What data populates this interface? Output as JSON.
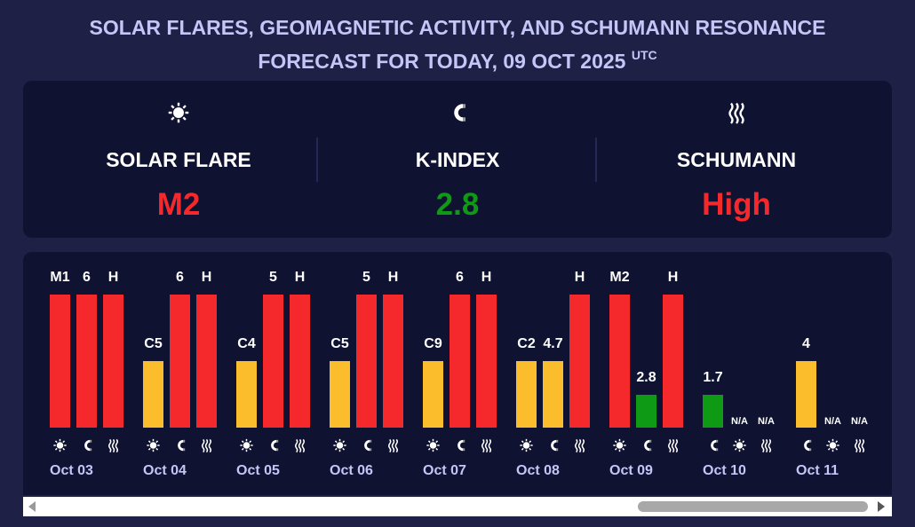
{
  "header": {
    "title_line1": "SOLAR FLARES, GEOMAGNETIC ACTIVITY, AND SCHUMANN RESONANCE",
    "title_line2": "FORECAST FOR TODAY, 09 OCT 2025",
    "title_sup": "UTC"
  },
  "summary": [
    {
      "label": "SOLAR FLARE",
      "value": "M2"
    },
    {
      "label": "K-INDEX",
      "value": 2.8
    },
    {
      "label": "SCHUMANN",
      "value": "High"
    }
  ],
  "days": [
    {
      "date": "Oct 03",
      "flare": "M1",
      "kindex": 6,
      "schumann": "H"
    },
    {
      "date": "Oct 04",
      "flare": "C5",
      "kindex": 6,
      "schumann": "H"
    },
    {
      "date": "Oct 05",
      "flare": "C4",
      "kindex": 5,
      "schumann": "H"
    },
    {
      "date": "Oct 06",
      "flare": "C5",
      "kindex": 5,
      "schumann": "H"
    },
    {
      "date": "Oct 07",
      "flare": "C9",
      "kindex": 6,
      "schumann": "H"
    },
    {
      "date": "Oct 08",
      "flare": "C2",
      "kindex": 4.7,
      "schumann": "H"
    },
    {
      "date": "Oct 09",
      "flare": "M2",
      "kindex": 2.8,
      "schumann": "H"
    },
    {
      "date": "Oct 10",
      "kindex": 1.7,
      "flare": "N/A",
      "schumann": "N/A"
    },
    {
      "date": "Oct 11",
      "kindex": 4,
      "flare": "N/A",
      "schumann": "N/A"
    }
  ]
}
